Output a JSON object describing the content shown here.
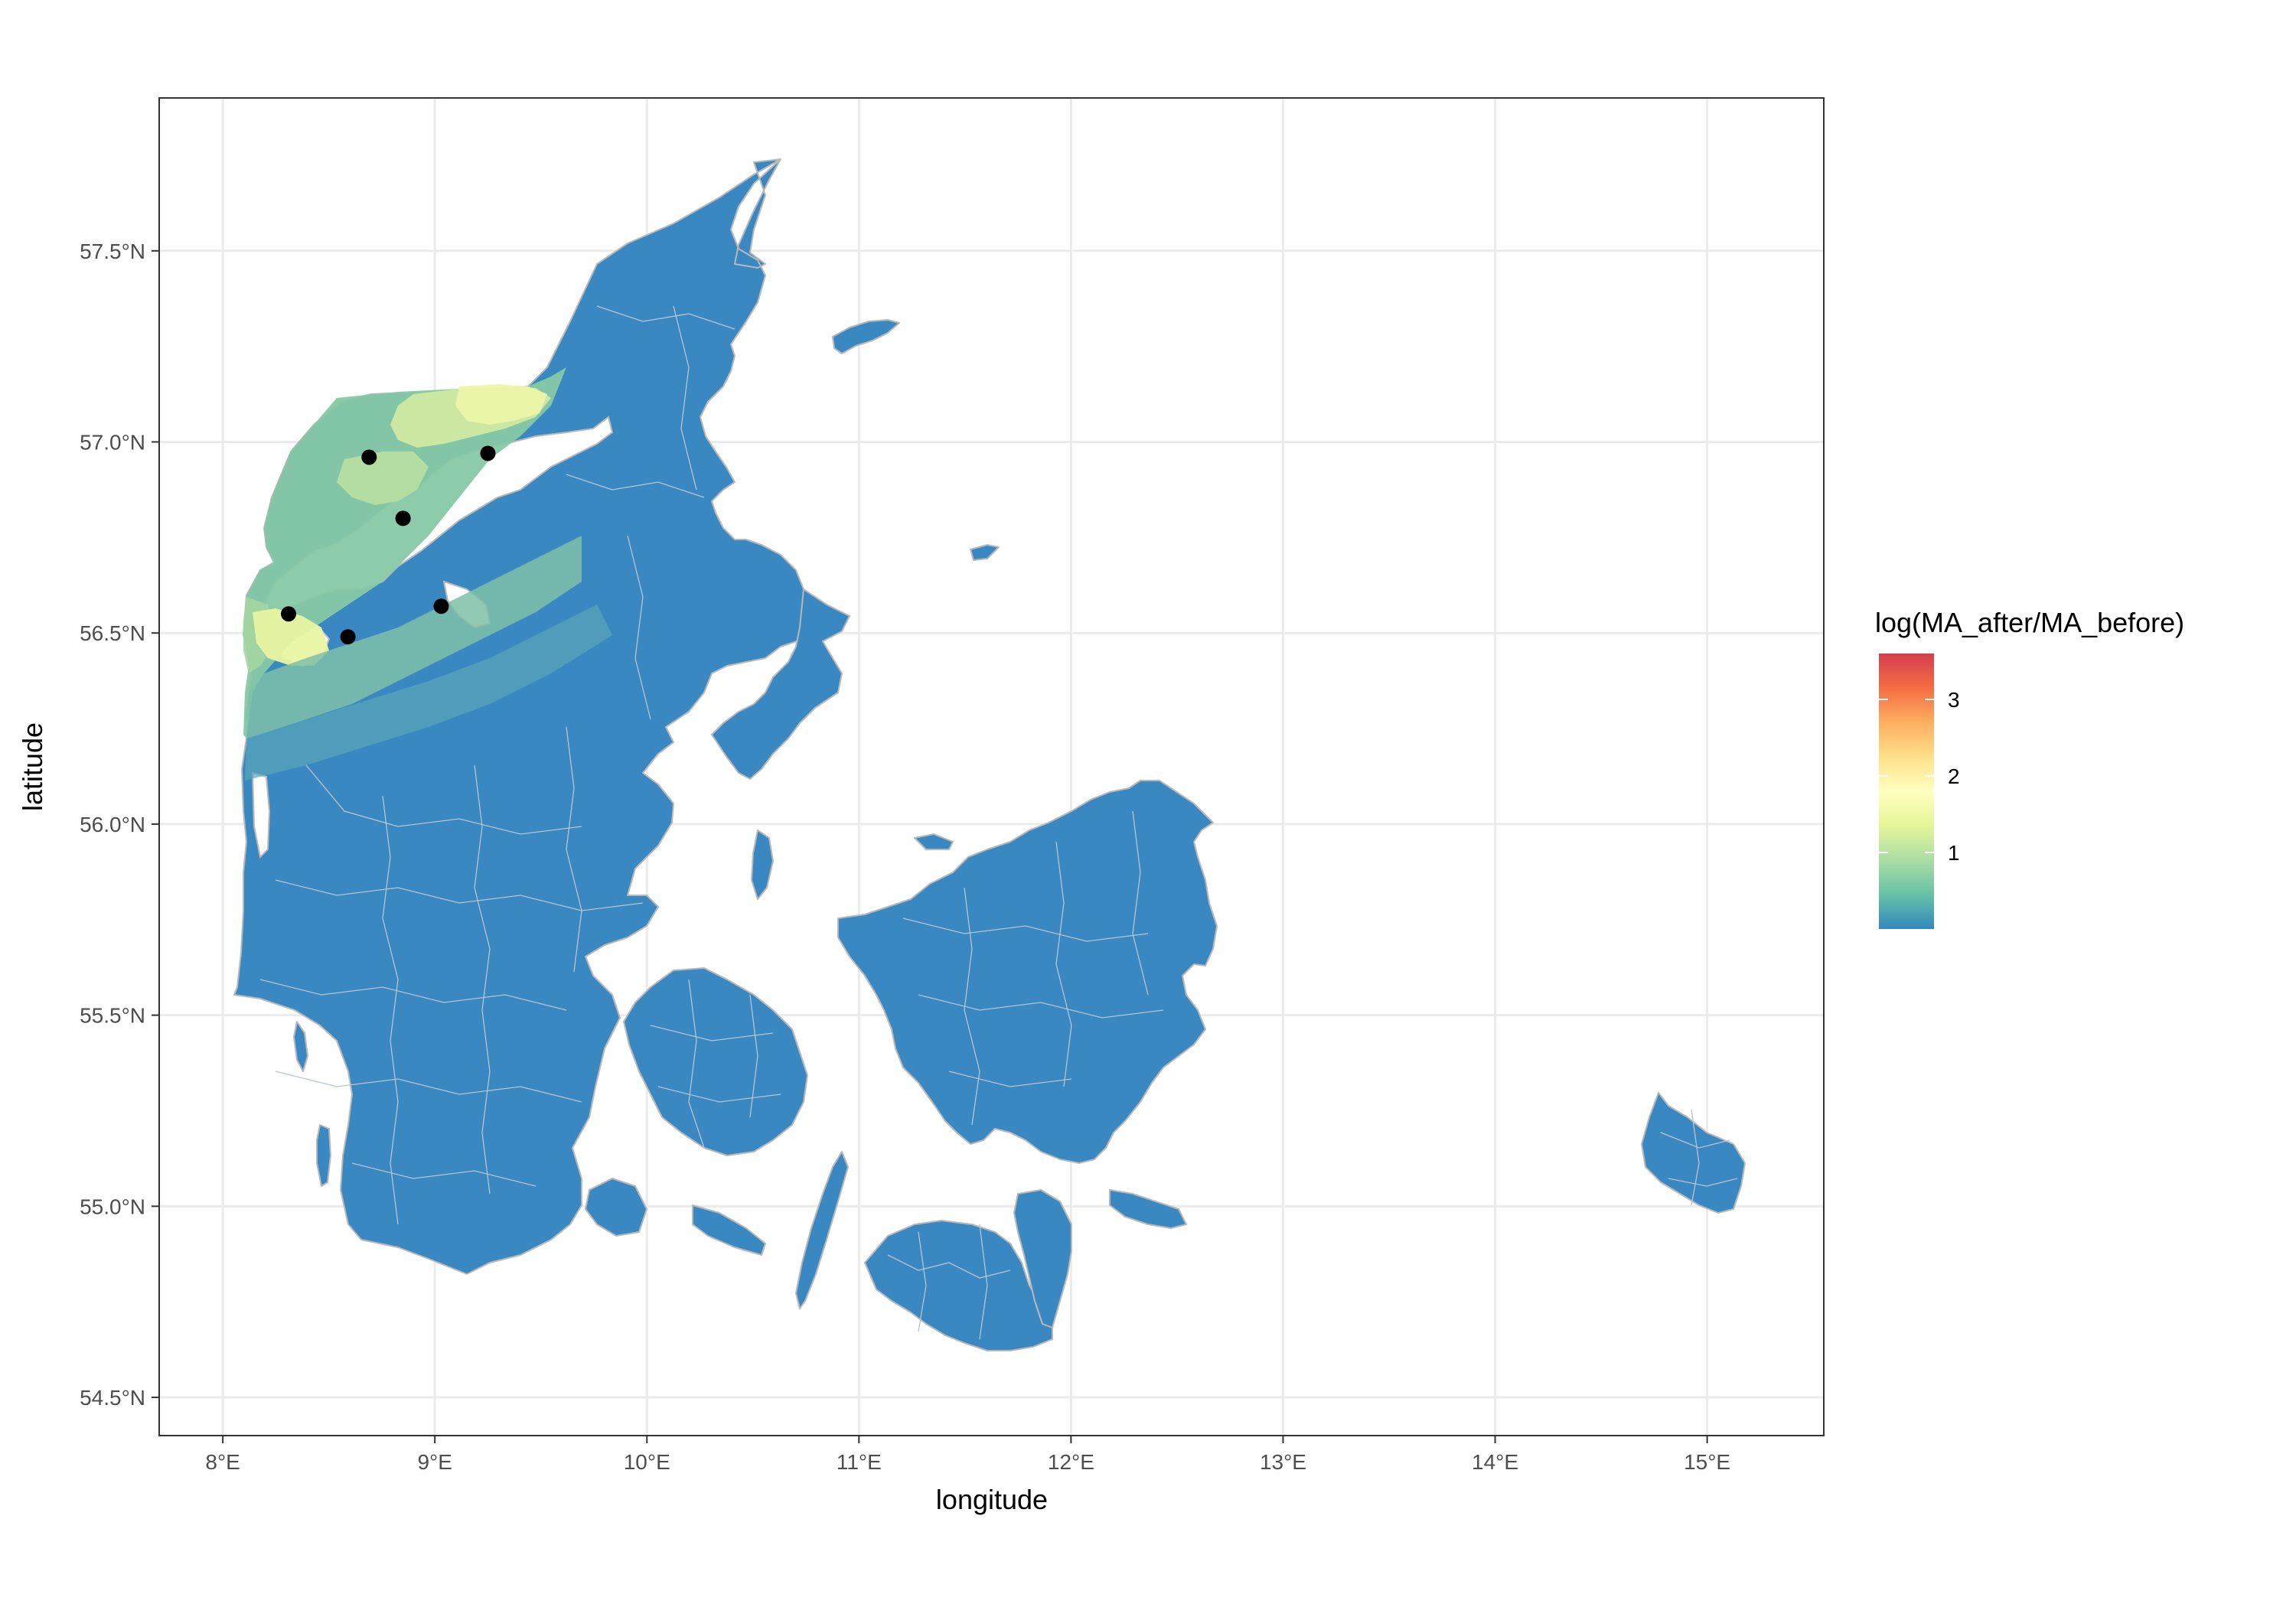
{
  "chart_data": {
    "type": "map",
    "xlabel": "longitude",
    "ylabel": "latitude",
    "xlim": [
      7.7,
      15.55
    ],
    "ylim": [
      54.4,
      57.9
    ],
    "x_ticks": [
      8,
      9,
      10,
      11,
      12,
      13,
      14,
      15
    ],
    "x_tick_labels": [
      "8°E",
      "9°E",
      "10°E",
      "11°E",
      "12°E",
      "13°E",
      "14°E",
      "15°E"
    ],
    "y_ticks": [
      54.5,
      55.0,
      55.5,
      56.0,
      56.5,
      57.0,
      57.5
    ],
    "y_tick_labels": [
      "54.5°N",
      "55.0°N",
      "55.5°N",
      "56.0°N",
      "56.5°N",
      "57.0°N",
      "57.5°N"
    ],
    "grid": true,
    "legend": {
      "title": "log(MA_after/MA_before)",
      "placement": "right",
      "scale": "RdYlBu (Spectral) gradient",
      "min": 0,
      "max": 3.6,
      "breaks": [
        1,
        2,
        3
      ],
      "break_labels": [
        "1",
        "2",
        "3"
      ],
      "colors": [
        "#3288bd",
        "#66c2a5",
        "#abdda4",
        "#e6f598",
        "#ffffbf",
        "#fee08b",
        "#fdae61",
        "#f46d43",
        "#d53e4f"
      ]
    },
    "base_fill": "#3a88c2",
    "border_color": "#b8b8b8",
    "points": [
      {
        "lon": 8.69,
        "lat": 56.96
      },
      {
        "lon": 9.25,
        "lat": 56.97
      },
      {
        "lon": 8.85,
        "lat": 56.8
      },
      {
        "lon": 8.31,
        "lat": 56.55
      },
      {
        "lon": 8.59,
        "lat": 56.49
      },
      {
        "lon": 9.03,
        "lat": 56.57
      }
    ],
    "point_color": "#000000"
  }
}
